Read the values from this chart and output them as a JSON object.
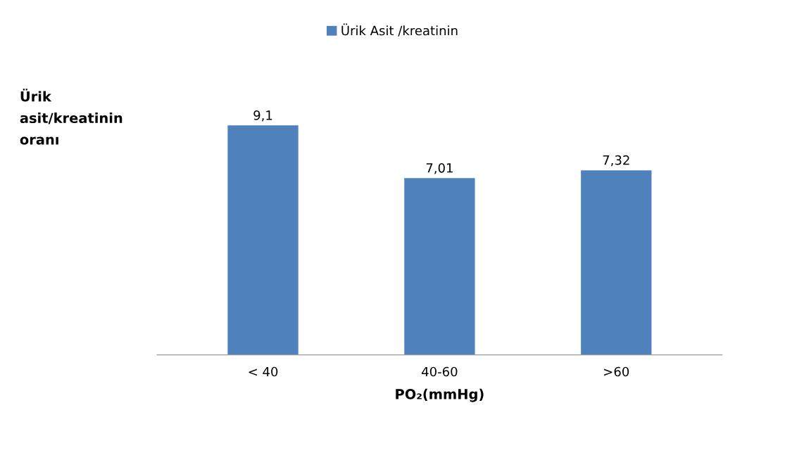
{
  "chart_data": {
    "type": "bar",
    "categories": [
      "< 40",
      "40-60",
      ">60"
    ],
    "series": [
      {
        "name": "Ürik Asit /kreatinin",
        "color": "#4f81bd",
        "values": [
          9.1,
          7.01,
          7.32
        ],
        "value_labels": [
          "9,1",
          "7,01",
          "7,32"
        ]
      }
    ],
    "ylabel": "Ürik asit/kreatinin oranı",
    "xlabel": "PO₂(mmHg)",
    "legend": "top",
    "grid": false
  }
}
